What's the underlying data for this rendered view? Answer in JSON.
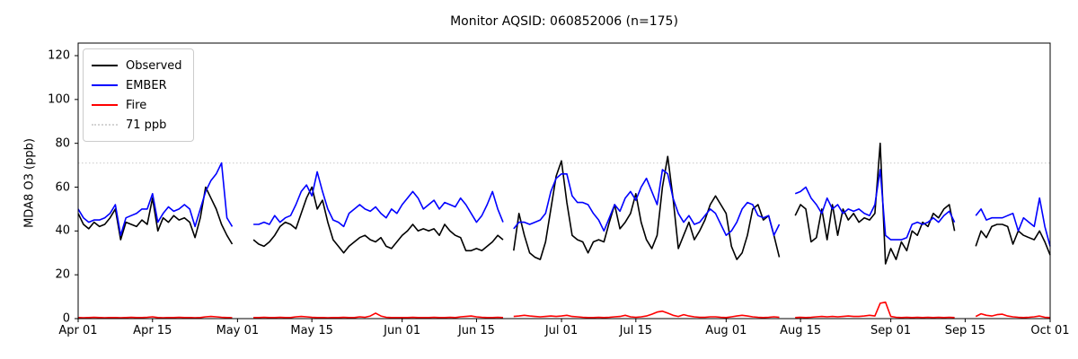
{
  "title": "Monitor AQSID: 060852006 (n=175)",
  "ylabel": "MDA8 O3 (ppb)",
  "legend": {
    "items": [
      {
        "label": "Observed",
        "color": "#000000",
        "style": "solid"
      },
      {
        "label": "EMBER",
        "color": "#0000ff",
        "style": "solid"
      },
      {
        "label": "Fire",
        "color": "#ff0000",
        "style": "solid"
      },
      {
        "label": "71 ppb",
        "color": "#d3d3d3",
        "style": "dotted"
      }
    ]
  },
  "chart_data": {
    "type": "line",
    "title": "Monitor AQSID: 060852006 (n=175)",
    "xlabel": "",
    "ylabel": "MDA8 O3 (ppb)",
    "n_points": 175,
    "grid": false,
    "legend_position": "upper left",
    "ylim": [
      0,
      125.8
    ],
    "y_ticks": [
      0,
      20,
      40,
      60,
      80,
      100,
      120
    ],
    "x_start": "Apr 01",
    "x_end": "Oct 01",
    "x_note": "values arrays are daily, index 0 = Apr 01, index 183 = Oct 01; null = missing day (gap in line)",
    "x_tick_labels": [
      "Apr 01",
      "Apr 15",
      "May 01",
      "May 15",
      "Jun 01",
      "Jun 15",
      "Jul 01",
      "Jul 15",
      "Aug 01",
      "Aug 15",
      "Sep 01",
      "Sep 15",
      "Oct 01"
    ],
    "x_tick_days": [
      0,
      14,
      30,
      44,
      61,
      75,
      91,
      105,
      122,
      136,
      153,
      167,
      183
    ],
    "threshold": {
      "label": "71 ppb",
      "value": 71,
      "color": "#d3d3d3",
      "style": "dotted"
    },
    "series": [
      {
        "name": "Observed",
        "color": "#000000",
        "values": [
          48,
          43,
          41,
          44,
          42,
          43,
          46,
          50,
          36,
          44,
          43,
          42,
          45,
          43,
          55,
          40,
          46,
          44,
          47,
          45,
          46,
          44,
          37,
          46,
          60,
          55,
          50,
          43,
          38,
          34,
          null,
          null,
          null,
          36,
          34,
          33,
          35,
          38,
          42,
          44,
          43,
          41,
          48,
          55,
          60,
          50,
          54,
          44,
          36,
          33,
          30,
          33,
          35,
          37,
          38,
          36,
          35,
          37,
          33,
          32,
          35,
          38,
          40,
          43,
          40,
          41,
          40,
          41,
          38,
          43,
          40,
          38,
          37,
          31,
          31,
          32,
          31,
          33,
          35,
          38,
          36,
          null,
          31,
          48,
          38,
          30,
          28,
          27,
          35,
          50,
          65,
          72,
          53,
          38,
          36,
          35,
          30,
          35,
          36,
          35,
          44,
          52,
          41,
          44,
          48,
          57,
          44,
          36,
          32,
          38,
          60,
          74,
          55,
          32,
          38,
          44,
          36,
          40,
          45,
          52,
          56,
          52,
          48,
          33,
          27,
          30,
          38,
          50,
          52,
          45,
          47,
          38,
          28,
          null,
          null,
          47,
          52,
          50,
          35,
          37,
          50,
          36,
          52,
          38,
          50,
          45,
          48,
          44,
          46,
          45,
          48,
          80,
          25,
          32,
          27,
          35,
          31,
          40,
          38,
          44,
          42,
          48,
          46,
          50,
          52,
          40,
          null,
          null,
          null,
          33,
          40,
          37,
          42,
          43,
          43,
          42,
          34,
          40,
          38,
          37,
          36,
          40,
          35,
          29
        ]
      },
      {
        "name": "EMBER",
        "color": "#0000ff",
        "values": [
          50,
          46,
          44,
          45,
          45,
          46,
          48,
          52,
          38,
          46,
          47,
          48,
          50,
          50,
          57,
          44,
          48,
          51,
          49,
          50,
          52,
          50,
          42,
          50,
          58,
          63,
          66,
          71,
          46,
          42,
          null,
          null,
          null,
          43,
          43,
          44,
          43,
          47,
          44,
          46,
          47,
          52,
          58,
          61,
          56,
          67,
          58,
          50,
          45,
          44,
          42,
          48,
          50,
          52,
          50,
          49,
          51,
          48,
          46,
          50,
          48,
          52,
          55,
          58,
          55,
          50,
          52,
          54,
          50,
          53,
          52,
          51,
          55,
          52,
          48,
          44,
          47,
          52,
          58,
          50,
          44,
          null,
          41,
          44,
          44,
          43,
          44,
          45,
          48,
          58,
          64,
          66,
          66,
          56,
          53,
          53,
          52,
          48,
          45,
          40,
          46,
          52,
          49,
          55,
          58,
          54,
          60,
          64,
          58,
          52,
          68,
          66,
          55,
          48,
          44,
          47,
          43,
          44,
          47,
          50,
          48,
          43,
          38,
          40,
          44,
          50,
          53,
          52,
          47,
          46,
          47,
          38,
          43,
          null,
          null,
          57,
          58,
          60,
          55,
          52,
          48,
          55,
          50,
          52,
          48,
          50,
          49,
          50,
          48,
          47,
          52,
          68,
          38,
          36,
          36,
          36,
          37,
          43,
          44,
          43,
          44,
          46,
          44,
          47,
          49,
          44,
          null,
          null,
          null,
          47,
          50,
          45,
          46,
          46,
          46,
          47,
          48,
          40,
          46,
          44,
          42,
          55,
          42,
          33
        ]
      },
      {
        "name": "Fire",
        "color": "#ff0000",
        "values": [
          0.5,
          0.4,
          0.5,
          0.6,
          0.5,
          0.4,
          0.5,
          0.5,
          0.4,
          0.5,
          0.6,
          0.5,
          0.5,
          0.6,
          0.8,
          0.5,
          0.4,
          0.5,
          0.5,
          0.6,
          0.5,
          0.5,
          0.4,
          0.5,
          0.8,
          1.0,
          0.8,
          0.6,
          0.5,
          0.4,
          null,
          null,
          null,
          0.5,
          0.5,
          0.6,
          0.5,
          0.5,
          0.6,
          0.5,
          0.5,
          0.8,
          1.0,
          0.8,
          0.6,
          0.5,
          0.5,
          0.4,
          0.5,
          0.5,
          0.6,
          0.5,
          0.5,
          0.8,
          0.6,
          1.2,
          2.5,
          1.2,
          0.6,
          0.5,
          0.5,
          0.5,
          0.5,
          0.6,
          0.5,
          0.5,
          0.5,
          0.6,
          0.5,
          0.5,
          0.6,
          0.5,
          0.8,
          1.0,
          1.2,
          0.8,
          0.6,
          0.5,
          0.5,
          0.6,
          0.5,
          null,
          1.0,
          1.2,
          1.5,
          1.2,
          1.0,
          0.8,
          1.0,
          1.2,
          1.0,
          1.2,
          1.5,
          1.0,
          0.8,
          0.6,
          0.5,
          0.5,
          0.6,
          0.5,
          0.6,
          0.8,
          1.0,
          1.5,
          0.8,
          0.6,
          0.8,
          1.2,
          2.0,
          3.0,
          3.4,
          2.5,
          1.5,
          1.0,
          1.8,
          1.2,
          0.8,
          0.6,
          0.6,
          0.8,
          0.8,
          0.6,
          0.5,
          0.8,
          1.2,
          1.5,
          1.2,
          0.8,
          0.6,
          0.5,
          0.6,
          0.8,
          0.6,
          null,
          null,
          0.5,
          0.6,
          0.5,
          0.6,
          0.8,
          1.0,
          0.8,
          1.0,
          0.8,
          1.0,
          1.2,
          1.0,
          1.0,
          1.2,
          1.5,
          1.2,
          7.0,
          7.5,
          1.0,
          0.6,
          0.5,
          0.6,
          0.5,
          0.6,
          0.5,
          0.6,
          0.5,
          0.6,
          0.5,
          0.6,
          0.5,
          null,
          null,
          null,
          1.0,
          2.2,
          1.5,
          1.2,
          1.8,
          2.0,
          1.2,
          0.8,
          0.6,
          0.5,
          0.6,
          0.8,
          1.2,
          0.6,
          0.5
        ]
      }
    ]
  }
}
